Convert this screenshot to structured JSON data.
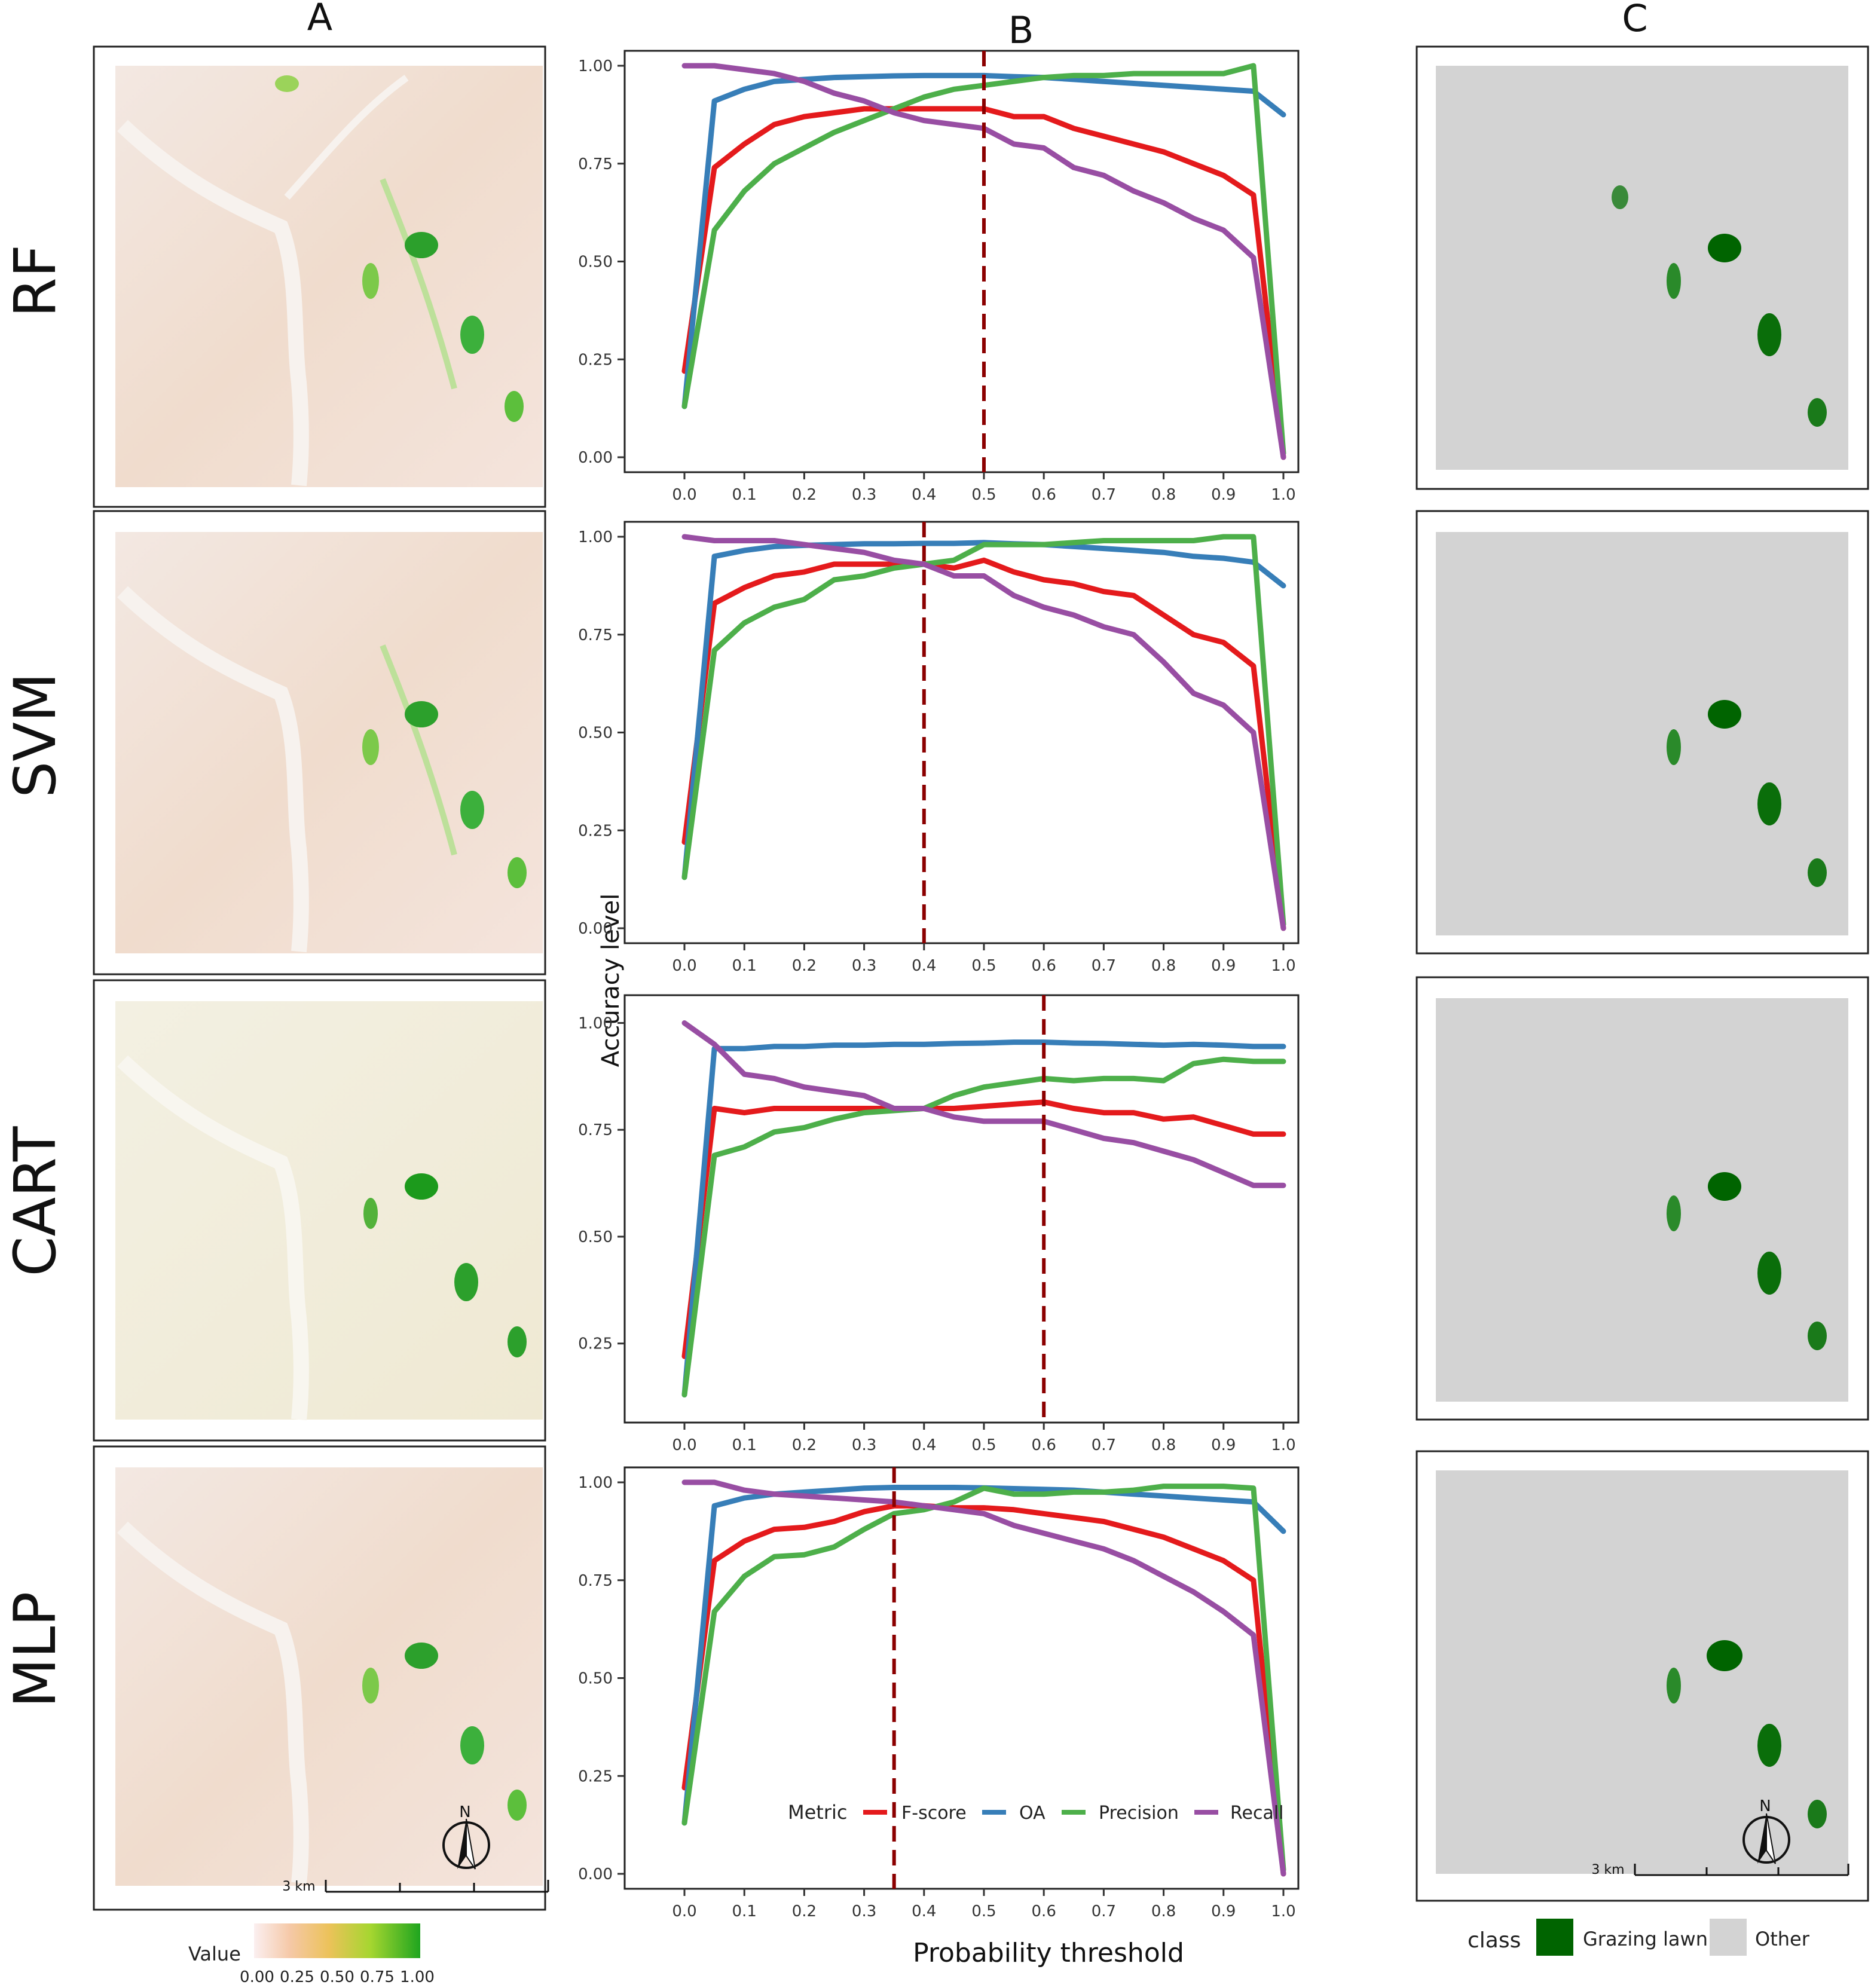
{
  "column_headers": {
    "a": "A",
    "b": "B",
    "c": "C"
  },
  "row_labels": [
    "RF",
    "SVM",
    "CART",
    "MLP"
  ],
  "colors": {
    "fscore": "#e41a1c",
    "oa": "#377eb8",
    "precision": "#4daf4a",
    "recall": "#984ea3",
    "threshold": "#8b0000",
    "grazing": "#006400",
    "other": "#d3d3d3"
  },
  "shared_labels": {
    "ylabel": "Accuracy level",
    "xlabel": "Probability threshold"
  },
  "legend": {
    "title": "Metric",
    "items": [
      {
        "key": "fscore",
        "label": "F-score"
      },
      {
        "key": "oa",
        "label": "OA"
      },
      {
        "key": "precision",
        "label": "Precision"
      },
      {
        "key": "recall",
        "label": "Recall"
      }
    ]
  },
  "map_legend": {
    "value_title": "Value",
    "value_ticks": [
      "0.00",
      "0.25",
      "0.50",
      "0.75",
      "1.00"
    ],
    "class_title": "class",
    "class_items": [
      {
        "key": "grazing",
        "label": "Grazing lawn"
      },
      {
        "key": "other",
        "label": "Other"
      }
    ]
  },
  "scale_bar_label": "3 km",
  "north_label": "N",
  "chart_data": [
    {
      "type": "line",
      "title": "RF",
      "threshold": 0.5,
      "ylim": [
        0,
        1
      ],
      "yticks": [
        0,
        0.25,
        0.5,
        0.75,
        1.0
      ],
      "ytick_labels": [
        "0.00",
        "0.25",
        "0.50",
        "0.75",
        "1.00"
      ],
      "xticks": [
        0,
        0.1,
        0.2,
        0.3,
        0.4,
        0.5,
        0.6,
        0.7,
        0.8,
        0.9,
        1.0
      ],
      "xtick_labels": [
        "0.0",
        "0.1",
        "0.2",
        "0.3",
        "0.4",
        "0.5",
        "0.6",
        "0.7",
        "0.8",
        "0.9",
        "1.0"
      ],
      "series": [
        {
          "name": "F-score",
          "key": "fscore",
          "x": [
            0,
            0.05,
            0.1,
            0.15,
            0.2,
            0.25,
            0.3,
            0.35,
            0.4,
            0.45,
            0.5,
            0.55,
            0.6,
            0.65,
            0.7,
            0.75,
            0.8,
            0.85,
            0.9,
            0.95,
            1.0
          ],
          "values": [
            0.22,
            0.74,
            0.8,
            0.85,
            0.87,
            0.88,
            0.89,
            0.89,
            0.89,
            0.89,
            0.89,
            0.87,
            0.87,
            0.84,
            0.82,
            0.8,
            0.78,
            0.75,
            0.72,
            0.67,
            0.0
          ]
        },
        {
          "name": "OA",
          "key": "oa",
          "x": [
            0,
            0.05,
            0.1,
            0.15,
            0.2,
            0.25,
            0.3,
            0.35,
            0.4,
            0.45,
            0.5,
            0.55,
            0.6,
            0.65,
            0.7,
            0.75,
            0.8,
            0.85,
            0.9,
            0.95,
            1.0
          ],
          "values": [
            0.13,
            0.91,
            0.94,
            0.96,
            0.965,
            0.97,
            0.972,
            0.974,
            0.975,
            0.975,
            0.975,
            0.972,
            0.97,
            0.965,
            0.96,
            0.955,
            0.95,
            0.945,
            0.94,
            0.935,
            0.875
          ]
        },
        {
          "name": "Precision",
          "key": "precision",
          "x": [
            0,
            0.05,
            0.1,
            0.15,
            0.2,
            0.25,
            0.3,
            0.35,
            0.4,
            0.45,
            0.5,
            0.55,
            0.6,
            0.65,
            0.7,
            0.75,
            0.8,
            0.85,
            0.9,
            0.95,
            1.0
          ],
          "values": [
            0.13,
            0.58,
            0.68,
            0.75,
            0.79,
            0.83,
            0.86,
            0.89,
            0.92,
            0.94,
            0.95,
            0.96,
            0.97,
            0.975,
            0.975,
            0.98,
            0.98,
            0.98,
            0.98,
            1.0,
            0.01
          ]
        },
        {
          "name": "Recall",
          "key": "recall",
          "x": [
            0,
            0.05,
            0.1,
            0.15,
            0.2,
            0.25,
            0.3,
            0.35,
            0.4,
            0.45,
            0.5,
            0.55,
            0.6,
            0.65,
            0.7,
            0.75,
            0.8,
            0.85,
            0.9,
            0.95,
            1.0
          ],
          "values": [
            1.0,
            1.0,
            0.99,
            0.98,
            0.96,
            0.93,
            0.91,
            0.88,
            0.86,
            0.85,
            0.84,
            0.8,
            0.79,
            0.74,
            0.72,
            0.68,
            0.65,
            0.61,
            0.58,
            0.51,
            0.0
          ]
        }
      ]
    },
    {
      "type": "line",
      "title": "SVM",
      "threshold": 0.4,
      "ylim": [
        0,
        1
      ],
      "yticks": [
        0,
        0.25,
        0.5,
        0.75,
        1.0
      ],
      "ytick_labels": [
        "0.00",
        "0.25",
        "0.50",
        "0.75",
        "1.00"
      ],
      "xticks": [
        0,
        0.1,
        0.2,
        0.3,
        0.4,
        0.5,
        0.6,
        0.7,
        0.8,
        0.9,
        1.0
      ],
      "xtick_labels": [
        "0.0",
        "0.1",
        "0.2",
        "0.3",
        "0.4",
        "0.5",
        "0.6",
        "0.7",
        "0.8",
        "0.9",
        "1.0"
      ],
      "series": [
        {
          "name": "F-score",
          "key": "fscore",
          "x": [
            0,
            0.05,
            0.1,
            0.15,
            0.2,
            0.25,
            0.3,
            0.35,
            0.4,
            0.45,
            0.5,
            0.55,
            0.6,
            0.65,
            0.7,
            0.75,
            0.8,
            0.85,
            0.9,
            0.95,
            1.0
          ],
          "values": [
            0.22,
            0.83,
            0.87,
            0.9,
            0.91,
            0.93,
            0.93,
            0.93,
            0.93,
            0.92,
            0.94,
            0.91,
            0.89,
            0.88,
            0.86,
            0.85,
            0.8,
            0.75,
            0.73,
            0.67,
            0.0
          ]
        },
        {
          "name": "OA",
          "key": "oa",
          "x": [
            0,
            0.05,
            0.1,
            0.15,
            0.2,
            0.25,
            0.3,
            0.35,
            0.4,
            0.45,
            0.5,
            0.55,
            0.6,
            0.65,
            0.7,
            0.75,
            0.8,
            0.85,
            0.9,
            0.95,
            1.0
          ],
          "values": [
            0.13,
            0.95,
            0.965,
            0.975,
            0.978,
            0.98,
            0.982,
            0.982,
            0.983,
            0.983,
            0.985,
            0.982,
            0.98,
            0.975,
            0.97,
            0.965,
            0.96,
            0.95,
            0.945,
            0.935,
            0.875
          ]
        },
        {
          "name": "Precision",
          "key": "precision",
          "x": [
            0,
            0.05,
            0.1,
            0.15,
            0.2,
            0.25,
            0.3,
            0.35,
            0.4,
            0.45,
            0.5,
            0.55,
            0.6,
            0.65,
            0.7,
            0.75,
            0.8,
            0.85,
            0.9,
            0.95,
            1.0
          ],
          "values": [
            0.13,
            0.71,
            0.78,
            0.82,
            0.84,
            0.89,
            0.9,
            0.92,
            0.93,
            0.94,
            0.98,
            0.98,
            0.98,
            0.985,
            0.99,
            0.99,
            0.99,
            0.99,
            1.0,
            1.0,
            0.01
          ]
        },
        {
          "name": "Recall",
          "key": "recall",
          "x": [
            0,
            0.05,
            0.1,
            0.15,
            0.2,
            0.25,
            0.3,
            0.35,
            0.4,
            0.45,
            0.5,
            0.55,
            0.6,
            0.65,
            0.7,
            0.75,
            0.8,
            0.85,
            0.9,
            0.95,
            1.0
          ],
          "values": [
            1.0,
            0.99,
            0.99,
            0.99,
            0.98,
            0.97,
            0.96,
            0.94,
            0.93,
            0.9,
            0.9,
            0.85,
            0.82,
            0.8,
            0.77,
            0.75,
            0.68,
            0.6,
            0.57,
            0.5,
            0.0
          ]
        }
      ]
    },
    {
      "type": "line",
      "title": "CART",
      "threshold": 0.6,
      "ylim": [
        0.1,
        1.03
      ],
      "yticks": [
        0.25,
        0.5,
        0.75,
        1.0
      ],
      "ytick_labels": [
        "0.25",
        "0.50",
        "0.75",
        "1.00"
      ],
      "xticks": [
        0,
        0.1,
        0.2,
        0.3,
        0.4,
        0.5,
        0.6,
        0.7,
        0.8,
        0.9,
        1.0
      ],
      "xtick_labels": [
        "0.0",
        "0.1",
        "0.2",
        "0.3",
        "0.4",
        "0.5",
        "0.6",
        "0.7",
        "0.8",
        "0.9",
        "1.0"
      ],
      "series": [
        {
          "name": "F-score",
          "key": "fscore",
          "x": [
            0,
            0.05,
            0.1,
            0.15,
            0.2,
            0.25,
            0.3,
            0.35,
            0.4,
            0.45,
            0.5,
            0.55,
            0.6,
            0.65,
            0.7,
            0.75,
            0.8,
            0.85,
            0.9,
            0.95,
            1.0
          ],
          "values": [
            0.22,
            0.8,
            0.79,
            0.8,
            0.8,
            0.8,
            0.8,
            0.8,
            0.8,
            0.8,
            0.805,
            0.81,
            0.815,
            0.8,
            0.79,
            0.79,
            0.775,
            0.78,
            0.76,
            0.74,
            0.74
          ]
        },
        {
          "name": "OA",
          "key": "oa",
          "x": [
            0,
            0.05,
            0.1,
            0.15,
            0.2,
            0.25,
            0.3,
            0.35,
            0.4,
            0.45,
            0.5,
            0.55,
            0.6,
            0.65,
            0.7,
            0.75,
            0.8,
            0.85,
            0.9,
            0.95,
            1.0
          ],
          "values": [
            0.13,
            0.94,
            0.94,
            0.945,
            0.945,
            0.948,
            0.948,
            0.95,
            0.95,
            0.952,
            0.953,
            0.955,
            0.955,
            0.953,
            0.952,
            0.95,
            0.948,
            0.95,
            0.948,
            0.945,
            0.945
          ]
        },
        {
          "name": "Precision",
          "key": "precision",
          "x": [
            0,
            0.05,
            0.1,
            0.15,
            0.2,
            0.25,
            0.3,
            0.35,
            0.4,
            0.45,
            0.5,
            0.55,
            0.6,
            0.65,
            0.7,
            0.75,
            0.8,
            0.85,
            0.9,
            0.95,
            1.0
          ],
          "values": [
            0.13,
            0.69,
            0.71,
            0.745,
            0.755,
            0.775,
            0.79,
            0.795,
            0.8,
            0.83,
            0.85,
            0.86,
            0.87,
            0.865,
            0.87,
            0.87,
            0.865,
            0.905,
            0.915,
            0.91,
            0.91
          ]
        },
        {
          "name": "Recall",
          "key": "recall",
          "x": [
            0,
            0.05,
            0.1,
            0.15,
            0.2,
            0.25,
            0.3,
            0.35,
            0.4,
            0.45,
            0.5,
            0.55,
            0.6,
            0.65,
            0.7,
            0.75,
            0.8,
            0.85,
            0.9,
            0.95,
            1.0
          ],
          "values": [
            1.0,
            0.95,
            0.88,
            0.87,
            0.85,
            0.84,
            0.83,
            0.8,
            0.8,
            0.78,
            0.77,
            0.77,
            0.77,
            0.75,
            0.73,
            0.72,
            0.7,
            0.68,
            0.65,
            0.62,
            0.62
          ]
        }
      ]
    },
    {
      "type": "line",
      "title": "MLP",
      "threshold": 0.35,
      "ylim": [
        0,
        1
      ],
      "yticks": [
        0,
        0.25,
        0.5,
        0.75,
        1.0
      ],
      "ytick_labels": [
        "0.00",
        "0.25",
        "0.50",
        "0.75",
        "1.00"
      ],
      "xticks": [
        0,
        0.1,
        0.2,
        0.3,
        0.4,
        0.5,
        0.6,
        0.7,
        0.8,
        0.9,
        1.0
      ],
      "xtick_labels": [
        "0.0",
        "0.1",
        "0.2",
        "0.3",
        "0.4",
        "0.5",
        "0.6",
        "0.7",
        "0.8",
        "0.9",
        "1.0"
      ],
      "series": [
        {
          "name": "F-score",
          "key": "fscore",
          "x": [
            0,
            0.05,
            0.1,
            0.15,
            0.2,
            0.25,
            0.3,
            0.35,
            0.4,
            0.45,
            0.5,
            0.55,
            0.6,
            0.65,
            0.7,
            0.75,
            0.8,
            0.85,
            0.9,
            0.95,
            1.0
          ],
          "values": [
            0.22,
            0.8,
            0.85,
            0.88,
            0.885,
            0.9,
            0.925,
            0.94,
            0.94,
            0.935,
            0.935,
            0.93,
            0.92,
            0.91,
            0.9,
            0.88,
            0.86,
            0.83,
            0.8,
            0.75,
            0.0
          ]
        },
        {
          "name": "OA",
          "key": "oa",
          "x": [
            0,
            0.05,
            0.1,
            0.15,
            0.2,
            0.25,
            0.3,
            0.35,
            0.4,
            0.45,
            0.5,
            0.55,
            0.6,
            0.65,
            0.7,
            0.75,
            0.8,
            0.85,
            0.9,
            0.95,
            1.0
          ],
          "values": [
            0.13,
            0.94,
            0.96,
            0.97,
            0.975,
            0.98,
            0.985,
            0.987,
            0.987,
            0.987,
            0.986,
            0.984,
            0.982,
            0.98,
            0.975,
            0.97,
            0.965,
            0.96,
            0.955,
            0.95,
            0.875
          ]
        },
        {
          "name": "Precision",
          "key": "precision",
          "x": [
            0,
            0.05,
            0.1,
            0.15,
            0.2,
            0.25,
            0.3,
            0.35,
            0.4,
            0.45,
            0.5,
            0.55,
            0.6,
            0.65,
            0.7,
            0.75,
            0.8,
            0.85,
            0.9,
            0.95,
            1.0
          ],
          "values": [
            0.13,
            0.67,
            0.76,
            0.81,
            0.815,
            0.835,
            0.88,
            0.92,
            0.93,
            0.95,
            0.985,
            0.97,
            0.97,
            0.975,
            0.975,
            0.98,
            0.99,
            0.99,
            0.99,
            0.985,
            0.01
          ]
        },
        {
          "name": "Recall",
          "key": "recall",
          "x": [
            0,
            0.05,
            0.1,
            0.15,
            0.2,
            0.25,
            0.3,
            0.35,
            0.4,
            0.45,
            0.5,
            0.55,
            0.6,
            0.65,
            0.7,
            0.75,
            0.8,
            0.85,
            0.9,
            0.95,
            1.0
          ],
          "values": [
            1.0,
            1.0,
            0.98,
            0.97,
            0.965,
            0.96,
            0.955,
            0.95,
            0.94,
            0.93,
            0.92,
            0.89,
            0.87,
            0.85,
            0.83,
            0.8,
            0.76,
            0.72,
            0.67,
            0.61,
            0.0
          ]
        }
      ]
    }
  ]
}
